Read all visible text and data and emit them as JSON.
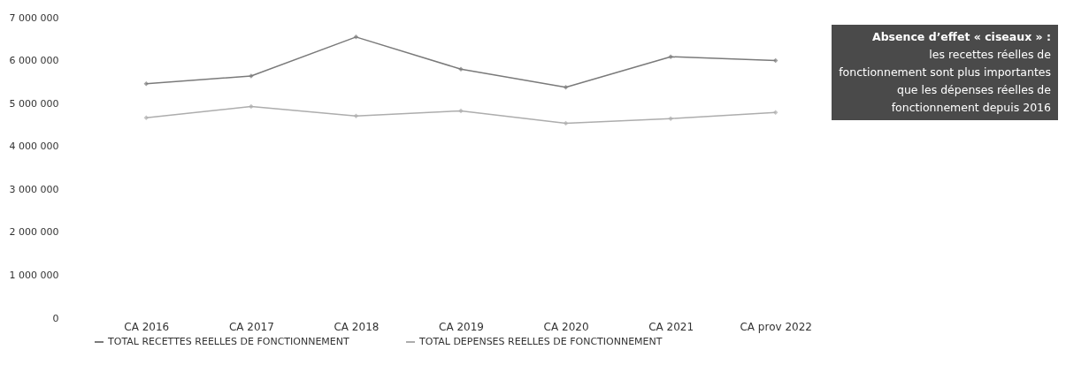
{
  "chart_data": {
    "type": "line",
    "categories": [
      "CA 2016",
      "CA 2017",
      "CA 2018",
      "CA 2019",
      "CA 2020",
      "CA 2021",
      "CA prov 2022"
    ],
    "series": [
      {
        "name": "TOTAL RECETTES REELLES DE FONCTIONNEMENT",
        "color": "#7a7a7a",
        "values": [
          5460000,
          5640000,
          6550000,
          5800000,
          5380000,
          6090000,
          6000000
        ]
      },
      {
        "name": "TOTAL DEPENSES REELLES DE FONCTIONNEMENT",
        "color": "#adadad",
        "values": [
          4670000,
          4930000,
          4710000,
          4830000,
          4540000,
          4650000,
          4790000
        ]
      }
    ],
    "ylim": [
      0,
      7000000
    ],
    "yticks": [
      0,
      1000000,
      2000000,
      3000000,
      4000000,
      5000000,
      6000000,
      7000000
    ],
    "grid": false,
    "legend": "bottom",
    "marker": "diamond",
    "line_style": "solid",
    "annotations": [
      "Absence d’effet « ciseaux » :",
      "les recettes réelles de fonctionnement  sont plus importantes que les dépenses réelles de fonctionnement depuis 2016"
    ]
  }
}
